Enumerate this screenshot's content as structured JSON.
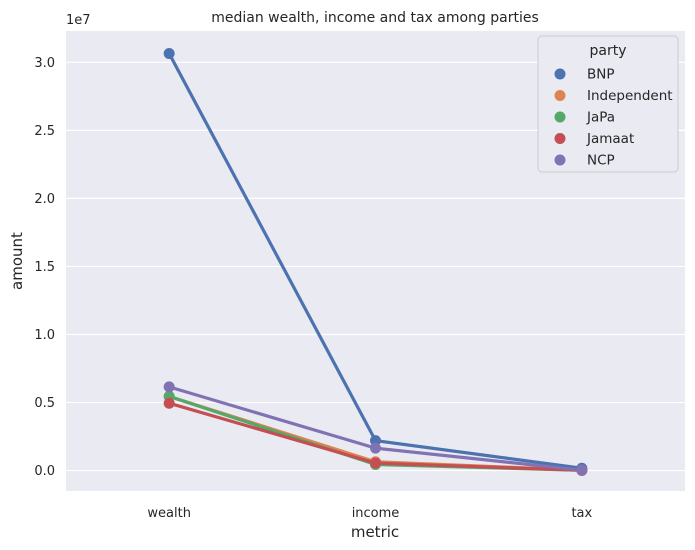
{
  "chart_data": {
    "type": "line",
    "title": "median wealth, income and tax among parties",
    "xlabel": "metric",
    "ylabel": "amount",
    "y_multiplier_label": "1e7",
    "y_scale_factor": 10000000,
    "categories": [
      "wealth",
      "income",
      "tax"
    ],
    "ylim": [
      -1500000,
      32300000
    ],
    "yticks": [
      0,
      5000000,
      10000000,
      15000000,
      20000000,
      25000000,
      30000000
    ],
    "ytick_labels": [
      "0.0",
      "0.5",
      "1.0",
      "1.5",
      "2.0",
      "2.5",
      "3.0"
    ],
    "grid": true,
    "legend_title": "party",
    "legend_position": "top-right",
    "series": [
      {
        "name": "BNP",
        "color": "#4c72b0",
        "values": [
          30650000,
          2200000,
          170000
        ]
      },
      {
        "name": "Independent",
        "color": "#dd8452",
        "values": [
          5450000,
          650000,
          30000
        ]
      },
      {
        "name": "JaPa",
        "color": "#55a868",
        "values": [
          5450000,
          450000,
          20000
        ]
      },
      {
        "name": "Jamaat",
        "color": "#c44e52",
        "values": [
          4950000,
          550000,
          20000
        ]
      },
      {
        "name": "NCP",
        "color": "#8172b3",
        "values": [
          6150000,
          1650000,
          30000
        ]
      }
    ]
  }
}
